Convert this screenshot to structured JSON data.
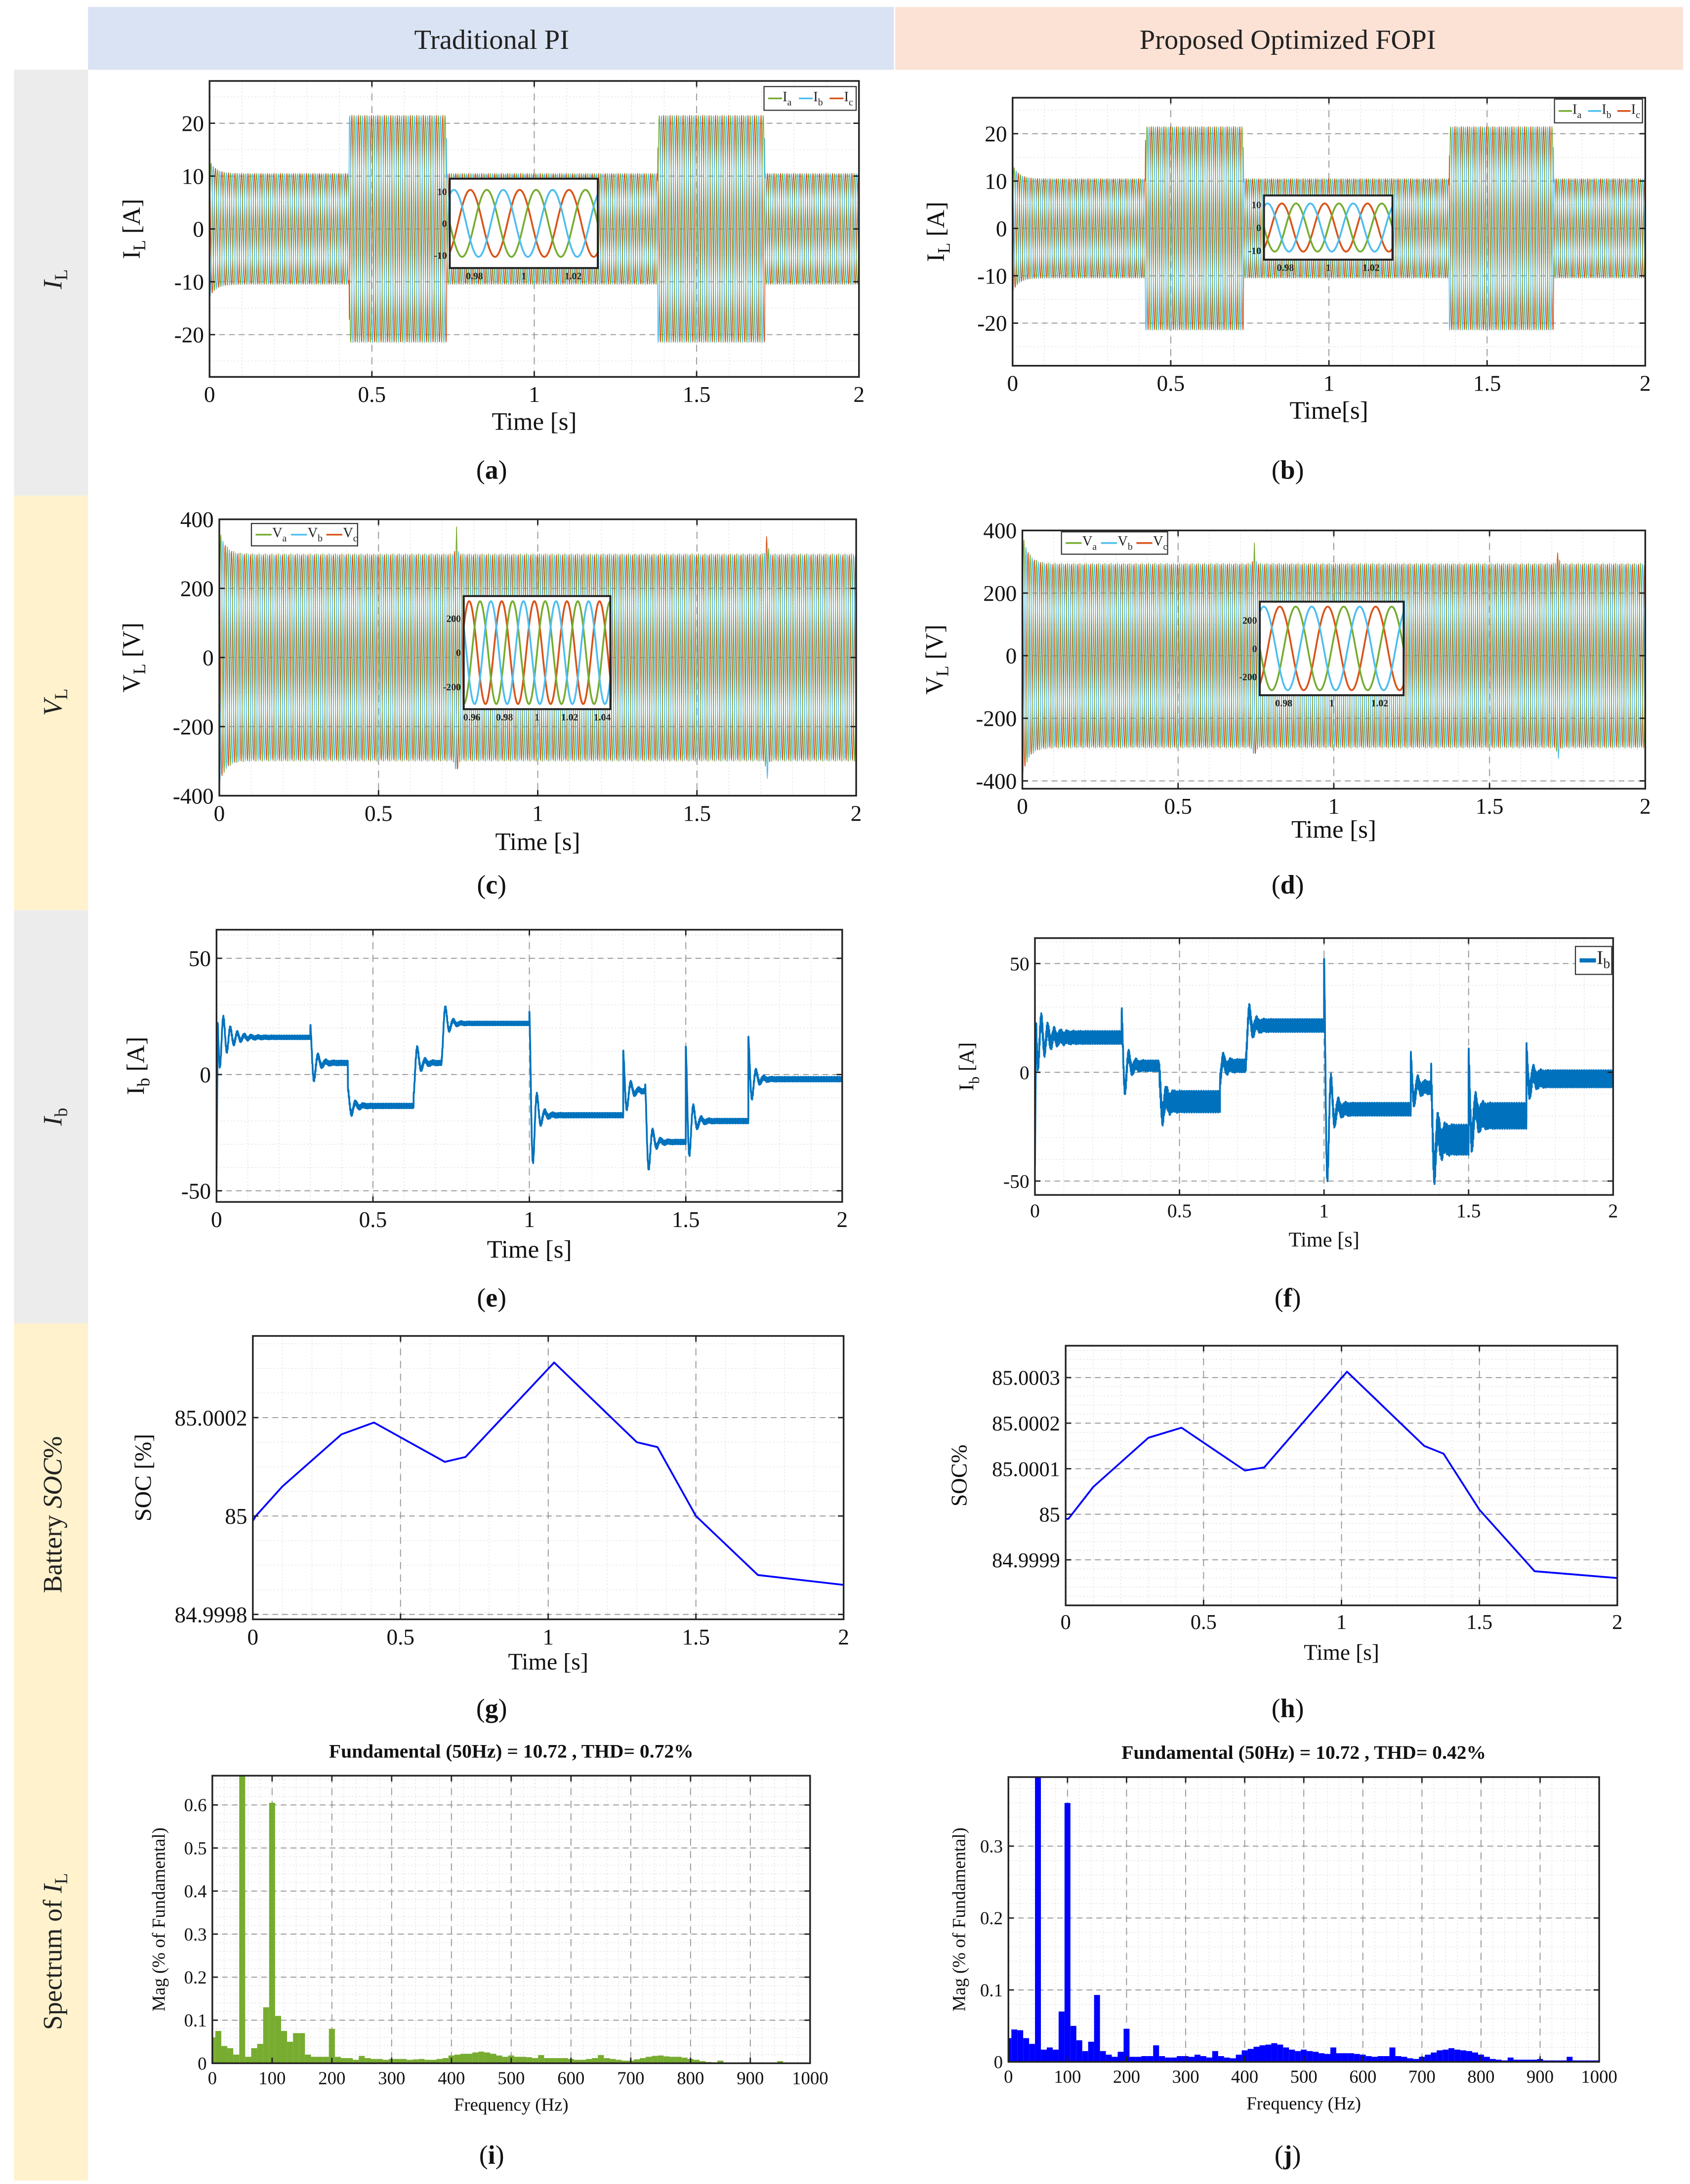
{
  "header": {
    "left": "Traditional PI",
    "right": "Proposed Optimized FOPI"
  },
  "rows": [
    {
      "pre": "",
      "ital": "I",
      "sub": "L",
      "post": ""
    },
    {
      "pre": "",
      "ital": "V",
      "sub": "L",
      "post": ""
    },
    {
      "pre": "",
      "ital": "I",
      "sub": "b",
      "post": ""
    },
    {
      "pre": "Battery ",
      "ital": "SOC",
      "sub": "",
      "post": "%"
    },
    {
      "pre": "Spectrum of ",
      "ital": "I",
      "sub": "L",
      "post": ""
    }
  ],
  "colors": {
    "header_left": "#dae3f3",
    "header_right": "#fbe2d5",
    "row_gray": "#ececec",
    "row_yellow": "#fff2cc",
    "phase_a": "#77ac30",
    "phase_b": "#4dbeee",
    "phase_c": "#d95319",
    "ib": "#0072bd",
    "soc": "#0000ff",
    "bars_pi": "#77ac30",
    "bars_fopi": "#0000ff"
  },
  "chart_data": [
    {
      "id": "a",
      "type": "line",
      "caption": "a",
      "xlabel": "Time [s]",
      "ylabel": {
        "main": "I",
        "sub": "L",
        "unit": " [A]"
      },
      "xlim": [
        0,
        2
      ],
      "ylim": [
        -28,
        28
      ],
      "x_ticks": [
        "0",
        "0.5",
        "1",
        "1.5",
        "2"
      ],
      "y_ticks": [
        "-20",
        "-10",
        "0",
        "10",
        "20"
      ],
      "legend": [
        {
          "main": "I",
          "sub": "a"
        },
        {
          "main": "I",
          "sub": "b"
        },
        {
          "main": "I",
          "sub": "c"
        }
      ],
      "frequency_hz": 50,
      "amplitude_segments": [
        [
          0,
          0.43,
          10.5
        ],
        [
          0.43,
          0.73,
          21.5
        ],
        [
          0.73,
          1.38,
          10.5
        ],
        [
          1.38,
          1.71,
          21.5
        ],
        [
          1.71,
          2,
          10.5
        ]
      ],
      "startup_peak": 13,
      "spikes": [],
      "inset": {
        "xlim": [
          0.97,
          1.03
        ],
        "ylim": [
          -14,
          14
        ],
        "x_ticks": [
          "0.98",
          "1",
          "1.02"
        ],
        "y_ticks": [
          "-10",
          "0",
          "10"
        ]
      }
    },
    {
      "id": "b",
      "type": "line",
      "caption": "b",
      "xlabel": "Time[s]",
      "ylabel": {
        "main": "I",
        "sub": "L",
        "unit": " [A]"
      },
      "xlim": [
        0,
        2
      ],
      "ylim": [
        -29,
        27.6
      ],
      "x_ticks": [
        "0",
        "0.5",
        "1",
        "1.5",
        "2"
      ],
      "y_ticks": [
        "-20",
        "-10",
        "0",
        "10",
        "20"
      ],
      "legend": [
        {
          "main": "I",
          "sub": "a"
        },
        {
          "main": "I",
          "sub": "b"
        },
        {
          "main": "I",
          "sub": "c"
        }
      ],
      "frequency_hz": 50,
      "amplitude_segments": [
        [
          0,
          0.42,
          10.5
        ],
        [
          0.42,
          0.73,
          21.5
        ],
        [
          0.73,
          1.38,
          10.5
        ],
        [
          1.38,
          1.71,
          21.5
        ],
        [
          1.71,
          2,
          10.5
        ]
      ],
      "startup_peak": 13.5,
      "spikes": [],
      "inset": {
        "xlim": [
          0.97,
          1.03
        ],
        "ylim": [
          -14,
          14
        ],
        "x_ticks": [
          "0.98",
          "1",
          "1.02"
        ],
        "y_ticks": [
          "-10",
          "0",
          "10"
        ]
      }
    },
    {
      "id": "c",
      "type": "line",
      "caption": "c",
      "xlabel": "Time [s]",
      "ylabel": {
        "main": "V",
        "sub": "L",
        "unit": " [V]"
      },
      "xlim": [
        0,
        2
      ],
      "ylim": [
        -400,
        400
      ],
      "x_ticks": [
        "0",
        "0.5",
        "1",
        "1.5",
        "2"
      ],
      "y_ticks": [
        "-400",
        "-200",
        "0",
        "200",
        "400"
      ],
      "legend": [
        {
          "main": "V",
          "sub": "a"
        },
        {
          "main": "V",
          "sub": "b"
        },
        {
          "main": "V",
          "sub": "c"
        }
      ],
      "frequency_hz": 50,
      "amplitude_segments": [
        [
          0,
          2,
          300
        ]
      ],
      "startup_peak": 370,
      "spikes": [
        [
          0.745,
          378
        ],
        [
          1.72,
          380
        ]
      ],
      "inset": {
        "xlim": [
          0.955,
          1.045
        ],
        "ylim": [
          -330,
          330
        ],
        "x_ticks": [
          "0.96",
          "0.98",
          "1",
          "1.02",
          "1.04"
        ],
        "y_ticks": [
          "-200",
          "0",
          "200"
        ]
      }
    },
    {
      "id": "d",
      "type": "line",
      "caption": "d",
      "xlabel": "Time [s]",
      "ylabel": {
        "main": "V",
        "sub": "L",
        "unit": " [V]"
      },
      "xlim": [
        0,
        2
      ],
      "ylim": [
        -425,
        400
      ],
      "x_ticks": [
        "0",
        "0.5",
        "1",
        "1.5",
        "2"
      ],
      "y_ticks": [
        "-400",
        "-200",
        "0",
        "200",
        "400"
      ],
      "legend": [
        {
          "main": "V",
          "sub": "a"
        },
        {
          "main": "V",
          "sub": "b"
        },
        {
          "main": "V",
          "sub": "c"
        }
      ],
      "frequency_hz": 50,
      "amplitude_segments": [
        [
          0,
          2,
          295
        ]
      ],
      "startup_peak": 390,
      "spikes": [
        [
          0.745,
          360
        ],
        [
          1.72,
          350
        ]
      ],
      "inset": {
        "xlim": [
          0.97,
          1.03
        ],
        "ylim": [
          -330,
          330
        ],
        "x_ticks": [
          "0.98",
          "1",
          "1.02"
        ],
        "y_ticks": [
          "-200",
          "0",
          "200"
        ]
      }
    },
    {
      "id": "e",
      "type": "line",
      "caption": "e",
      "xlabel": "Time [s]",
      "ylabel": {
        "main": "I",
        "sub": "b",
        "unit": " [A]"
      },
      "xlim": [
        0,
        2
      ],
      "ylim": [
        -54.8,
        62.3
      ],
      "x_ticks": [
        "0",
        "0.5",
        "1",
        "1.5",
        "2"
      ],
      "y_ticks": [
        "-50",
        "0",
        "50"
      ],
      "start_value": -43,
      "segments": [
        {
          "t": [
            0,
            0.3
          ],
          "level": 16,
          "overshoot": 34,
          "ripple": 0.8
        },
        {
          "t": [
            0.3,
            0.42
          ],
          "level": 5,
          "overshoot": 21,
          "ripple": 1
        },
        {
          "t": [
            0.42,
            0.63
          ],
          "level": -13.5,
          "overshoot": -6,
          "ripple": 1
        },
        {
          "t": [
            0.63,
            0.72
          ],
          "level": 5,
          "overshoot": -9,
          "ripple": 1
        },
        {
          "t": [
            0.72,
            1.0
          ],
          "level": 22,
          "overshoot": 7,
          "ripple": 0.8
        },
        {
          "t": [
            1.0,
            1.3
          ],
          "level": -17.5,
          "overshoot": 27,
          "ripple": 1
        },
        {
          "t": [
            1.3,
            1.37
          ],
          "level": -7,
          "overshoot": 10,
          "ripple": 1
        },
        {
          "t": [
            1.37,
            1.5
          ],
          "level": -29,
          "overshoot": -4,
          "ripple": 1
        },
        {
          "t": [
            1.5,
            1.7
          ],
          "level": -20,
          "overshoot": 12,
          "ripple": 1
        },
        {
          "t": [
            1.7,
            2.0
          ],
          "level": -2,
          "overshoot": 16,
          "ripple": 1
        }
      ]
    },
    {
      "id": "f",
      "type": "line",
      "caption": "f",
      "xlabel": "Time [s]",
      "ylabel": {
        "main": "I",
        "sub": "b",
        "unit": " [A]"
      },
      "xlim": [
        0,
        2
      ],
      "ylim": [
        -56.4,
        61.7
      ],
      "x_ticks": [
        "0",
        "0.5",
        "1",
        "1.5",
        "2"
      ],
      "y_ticks": [
        "-50",
        "0",
        "50"
      ],
      "legend": [
        {
          "main": "I",
          "sub": "b"
        }
      ],
      "start_value": -43,
      "segments": [
        {
          "t": [
            0,
            0.3
          ],
          "level": 16,
          "overshoot": 34,
          "ripple": 3
        },
        {
          "t": [
            0.3,
            0.43
          ],
          "level": 3,
          "overshoot": 28,
          "ripple": 2.5
        },
        {
          "t": [
            0.43,
            0.64
          ],
          "level": -13.5,
          "overshoot": 0,
          "ripple": 5
        },
        {
          "t": [
            0.64,
            0.73
          ],
          "level": 3,
          "overshoot": -4,
          "ripple": 3
        },
        {
          "t": [
            0.73,
            1.0
          ],
          "level": 21.5,
          "overshoot": 6,
          "ripple": 3
        },
        {
          "t": [
            1.0,
            1.3
          ],
          "level": -17,
          "overshoot": 52,
          "ripple": 3
        },
        {
          "t": [
            1.3,
            1.37
          ],
          "level": -7,
          "overshoot": 7,
          "ripple": 3
        },
        {
          "t": [
            1.37,
            1.5
          ],
          "level": -31,
          "overshoot": 0,
          "ripple": 7
        },
        {
          "t": [
            1.5,
            1.7
          ],
          "level": -20,
          "overshoot": 6,
          "ripple": 6
        },
        {
          "t": [
            1.7,
            2.0
          ],
          "level": -3,
          "overshoot": 10,
          "ripple": 4
        }
      ]
    },
    {
      "id": "g",
      "type": "line",
      "caption": "g",
      "xlabel": "Time [s]",
      "ylabel": {
        "main": "SOC [%]",
        "sub": "",
        "unit": ""
      },
      "xlim": [
        0,
        2
      ],
      "ylim": [
        84.99979,
        85.000366
      ],
      "x_ticks": [
        "0",
        "0.5",
        "1",
        "1.5",
        "2"
      ],
      "y_ticks": [
        "84.9998",
        "85",
        "85.0002"
      ],
      "x": [
        0,
        0.01,
        0.1,
        0.3,
        0.41,
        0.65,
        0.72,
        1.02,
        1.3,
        1.37,
        1.5,
        1.71,
        2.0
      ],
      "y": [
        84.99999,
        85.0,
        85.00006,
        85.000166,
        85.00019,
        85.00011,
        85.00012,
        85.000312,
        85.00015,
        85.00014,
        85.0,
        84.99988,
        84.99986
      ]
    },
    {
      "id": "h",
      "type": "line",
      "caption": "h",
      "xlabel": "Time [s]",
      "ylabel": {
        "main": "SOC%",
        "sub": "",
        "unit": ""
      },
      "xlim": [
        0,
        2
      ],
      "ylim": [
        84.9998,
        85.00037
      ],
      "x_ticks": [
        "0",
        "0.5",
        "1",
        "1.5",
        "2"
      ],
      "y_ticks": [
        "84.9999",
        "85",
        "85.0001",
        "85.0002",
        "85.0003"
      ],
      "x": [
        0,
        0.01,
        0.1,
        0.3,
        0.42,
        0.65,
        0.72,
        1.02,
        1.3,
        1.37,
        1.5,
        1.7,
        2.0
      ],
      "y": [
        84.99999,
        84.99999,
        85.00006,
        85.000168,
        85.00019,
        85.000096,
        85.000103,
        85.000313,
        85.00015,
        85.000133,
        85.00001,
        84.999875,
        84.99986
      ]
    },
    {
      "id": "i",
      "type": "bar",
      "caption": "i",
      "title": "Fundamental (50Hz) = 10.72 , THD= 0.72%",
      "xlabel": "Frequency (Hz)",
      "ylabel": {
        "main": "Mag (% of Fundamental)",
        "sub": "",
        "unit": ""
      },
      "xlim": [
        0,
        1000
      ],
      "ylim": [
        0,
        0.668
      ],
      "x_ticks": [
        "0",
        "100",
        "200",
        "300",
        "400",
        "500",
        "600",
        "700",
        "800",
        "900",
        "1000"
      ],
      "y_ticks": [
        "0",
        "0.1",
        "0.2",
        "0.3",
        "0.4",
        "0.5",
        "0.6"
      ],
      "bin_hz": 10,
      "values": [
        0.06,
        0.075,
        0.04,
        0.035,
        0.02,
        0.7,
        0.015,
        0.035,
        0.045,
        0.13,
        0.605,
        0.11,
        0.075,
        0.05,
        0.07,
        0.07,
        0.02,
        0.015,
        0.015,
        0.015,
        0.08,
        0.015,
        0.012,
        0.012,
        0.008,
        0.017,
        0.012,
        0.01,
        0.01,
        0.008,
        0.01,
        0.01,
        0.01,
        0.008,
        0.009,
        0.01,
        0.008,
        0.008,
        0.01,
        0.012,
        0.018,
        0.02,
        0.022,
        0.022,
        0.025,
        0.027,
        0.025,
        0.022,
        0.018,
        0.015,
        0.018,
        0.015,
        0.015,
        0.014,
        0.012,
        0.019,
        0.012,
        0.012,
        0.012,
        0.012,
        0.01,
        0.008,
        0.008,
        0.01,
        0.012,
        0.019,
        0.012,
        0.01,
        0.008,
        0.006,
        0.006,
        0.009,
        0.012,
        0.015,
        0.017,
        0.018,
        0.016,
        0.015,
        0.015,
        0.013,
        0.01,
        0.008,
        0.005,
        0.003,
        0.002,
        0.006,
        0.001,
        0.001,
        0.001,
        0.002,
        0.002,
        0.001,
        0.001,
        0.001,
        0.001,
        0.005,
        0.001,
        0.001,
        0.001,
        0.001,
        0.001
      ]
    },
    {
      "id": "j",
      "type": "bar",
      "caption": "j",
      "title": "Fundamental (50Hz) = 10.72 , THD= 0.42%",
      "xlabel": "Frequency (Hz)",
      "ylabel": {
        "main": "Mag (% of Fundamental)",
        "sub": "",
        "unit": ""
      },
      "xlim": [
        0,
        1000
      ],
      "ylim": [
        0,
        0.396
      ],
      "x_ticks": [
        "0",
        "100",
        "200",
        "300",
        "400",
        "500",
        "600",
        "700",
        "800",
        "900",
        "1000"
      ],
      "y_ticks": [
        "0",
        "0.1",
        "0.2",
        "0.3"
      ],
      "bin_hz": 10,
      "values": [
        0.033,
        0.045,
        0.044,
        0.033,
        0.025,
        0.5,
        0.017,
        0.02,
        0.017,
        0.07,
        0.36,
        0.05,
        0.03,
        0.015,
        0.028,
        0.093,
        0.015,
        0.01,
        0.007,
        0.014,
        0.046,
        0.007,
        0.007,
        0.008,
        0.008,
        0.023,
        0.008,
        0.006,
        0.006,
        0.008,
        0.008,
        0.007,
        0.01,
        0.008,
        0.006,
        0.015,
        0.008,
        0.006,
        0.005,
        0.01,
        0.016,
        0.018,
        0.021,
        0.023,
        0.024,
        0.026,
        0.024,
        0.02,
        0.017,
        0.015,
        0.017,
        0.015,
        0.014,
        0.012,
        0.011,
        0.02,
        0.012,
        0.012,
        0.012,
        0.011,
        0.01,
        0.008,
        0.007,
        0.008,
        0.008,
        0.02,
        0.008,
        0.007,
        0.005,
        0.004,
        0.007,
        0.01,
        0.013,
        0.016,
        0.017,
        0.019,
        0.017,
        0.016,
        0.015,
        0.013,
        0.01,
        0.007,
        0.004,
        0.003,
        0.002,
        0.006,
        0.003,
        0.003,
        0.003,
        0.003,
        0.004,
        0.002,
        0.002,
        0.002,
        0.002,
        0.007,
        0.002,
        0.002,
        0.002,
        0.002,
        0.002
      ]
    }
  ]
}
